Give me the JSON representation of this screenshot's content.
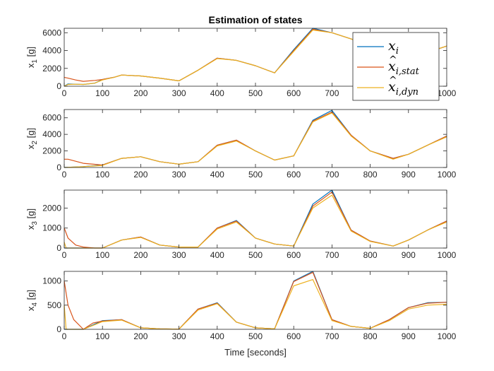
{
  "figure": {
    "title": "Estimation of states",
    "xlabel": "Time [seconds]"
  },
  "chart_data": [
    {
      "type": "line",
      "ylabel_main": "x",
      "ylabel_sub": "1",
      "ylabel_unit": " [g]",
      "xlim": [
        0,
        1000
      ],
      "ylim": [
        0,
        6500
      ],
      "xticks": [
        0,
        100,
        200,
        300,
        400,
        500,
        600,
        700,
        800,
        900,
        1000
      ],
      "yticks": [
        0,
        2000,
        4000,
        6000
      ],
      "grid": false,
      "series": [
        {
          "name": "x_i",
          "color": "#0072BD",
          "x": [
            0,
            10,
            30,
            50,
            80,
            100,
            130,
            150,
            200,
            250,
            300,
            350,
            400,
            450,
            500,
            550,
            600,
            650,
            700,
            750,
            800,
            850,
            900,
            950,
            1000
          ],
          "y": [
            0,
            250,
            220,
            200,
            350,
            750,
            1000,
            1250,
            1150,
            900,
            600,
            1800,
            3150,
            2900,
            2300,
            1500,
            4100,
            6500,
            6000,
            5300,
            4500,
            3800,
            3500,
            3800,
            4500
          ]
        },
        {
          "name": "x_hat_stat",
          "color": "#D95319",
          "x": [
            0,
            10,
            30,
            50,
            80,
            100,
            130,
            150,
            200,
            250,
            300,
            350,
            400,
            450,
            500,
            550,
            600,
            650,
            700,
            750,
            800,
            850,
            900,
            950,
            1000
          ],
          "y": [
            1000,
            900,
            700,
            550,
            650,
            750,
            1000,
            1250,
            1150,
            900,
            600,
            1800,
            3150,
            2900,
            2300,
            1500,
            4000,
            6400,
            6000,
            5300,
            4500,
            3800,
            3500,
            3800,
            4500
          ]
        },
        {
          "name": "x_hat_dyn",
          "color": "#EDB120",
          "x": [
            0,
            10,
            30,
            50,
            80,
            100,
            130,
            150,
            200,
            250,
            300,
            350,
            400,
            450,
            500,
            550,
            600,
            650,
            700,
            750,
            800,
            850,
            900,
            950,
            1000
          ],
          "y": [
            0,
            200,
            220,
            200,
            350,
            700,
            1000,
            1250,
            1150,
            900,
            600,
            1800,
            3100,
            2900,
            2300,
            1500,
            3900,
            6300,
            6000,
            5300,
            4500,
            3800,
            3500,
            3800,
            4500
          ]
        }
      ]
    },
    {
      "type": "line",
      "ylabel_main": "x",
      "ylabel_sub": "2",
      "ylabel_unit": " [g]",
      "xlim": [
        0,
        1000
      ],
      "ylim": [
        0,
        7000
      ],
      "xticks": [
        0,
        100,
        200,
        300,
        400,
        500,
        600,
        700,
        800,
        900,
        1000
      ],
      "yticks": [
        0,
        2000,
        4000,
        6000
      ],
      "grid": false,
      "series": [
        {
          "name": "x_i",
          "color": "#0072BD",
          "x": [
            0,
            50,
            100,
            150,
            200,
            250,
            300,
            350,
            400,
            450,
            500,
            550,
            600,
            650,
            700,
            750,
            800,
            860,
            900,
            950,
            1000
          ],
          "y": [
            0,
            100,
            300,
            1100,
            1300,
            700,
            400,
            700,
            2700,
            3300,
            2000,
            900,
            1400,
            5700,
            6900,
            3900,
            2000,
            1100,
            1600,
            2700,
            3800
          ]
        },
        {
          "name": "x_hat_stat",
          "color": "#D95319",
          "x": [
            0,
            10,
            50,
            100,
            150,
            200,
            250,
            300,
            350,
            400,
            450,
            500,
            550,
            600,
            650,
            700,
            750,
            800,
            860,
            900,
            950,
            1000
          ],
          "y": [
            1000,
            1000,
            500,
            300,
            1100,
            1300,
            700,
            400,
            700,
            2700,
            3300,
            2000,
            900,
            1400,
            5600,
            6700,
            3900,
            2000,
            1100,
            1600,
            2700,
            3800
          ]
        },
        {
          "name": "x_hat_dyn",
          "color": "#EDB120",
          "x": [
            0,
            50,
            100,
            150,
            200,
            250,
            300,
            350,
            400,
            450,
            500,
            550,
            600,
            650,
            700,
            750,
            800,
            860,
            900,
            950,
            1000
          ],
          "y": [
            0,
            100,
            250,
            1100,
            1300,
            700,
            400,
            700,
            2600,
            3200,
            2000,
            900,
            1400,
            5500,
            6600,
            3800,
            2000,
            1000,
            1600,
            2700,
            3700
          ]
        }
      ]
    },
    {
      "type": "line",
      "ylabel_main": "x",
      "ylabel_sub": "3",
      "ylabel_unit": " [g]",
      "xlim": [
        0,
        1000
      ],
      "ylim": [
        0,
        2900
      ],
      "xticks": [
        0,
        100,
        200,
        300,
        400,
        500,
        600,
        700,
        800,
        900,
        1000
      ],
      "yticks": [
        0,
        1000,
        2000
      ],
      "grid": false,
      "series": [
        {
          "name": "x_i",
          "color": "#0072BD",
          "x": [
            0,
            50,
            100,
            150,
            200,
            250,
            300,
            350,
            400,
            450,
            500,
            550,
            600,
            650,
            700,
            750,
            800,
            860,
            900,
            950,
            1000
          ],
          "y": [
            0,
            0,
            0,
            400,
            550,
            150,
            50,
            50,
            1000,
            1380,
            500,
            200,
            100,
            2200,
            2900,
            900,
            350,
            100,
            400,
            900,
            1350
          ]
        },
        {
          "name": "x_hat_stat",
          "color": "#D95319",
          "x": [
            0,
            10,
            30,
            50,
            80,
            100,
            150,
            200,
            250,
            300,
            350,
            400,
            450,
            500,
            550,
            600,
            650,
            700,
            750,
            800,
            860,
            900,
            950,
            1000
          ],
          "y": [
            1000,
            500,
            150,
            50,
            0,
            0,
            400,
            550,
            150,
            50,
            50,
            1000,
            1350,
            500,
            200,
            100,
            2100,
            2800,
            900,
            350,
            100,
            400,
            900,
            1350
          ]
        },
        {
          "name": "x_hat_dyn",
          "color": "#EDB120",
          "x": [
            0,
            5,
            50,
            100,
            150,
            200,
            250,
            300,
            350,
            400,
            450,
            500,
            550,
            600,
            650,
            700,
            750,
            800,
            860,
            900,
            950,
            1000
          ],
          "y": [
            300,
            0,
            0,
            0,
            400,
            530,
            150,
            50,
            50,
            950,
            1300,
            500,
            200,
            100,
            2000,
            2650,
            850,
            330,
            100,
            400,
            900,
            1300
          ]
        }
      ]
    },
    {
      "type": "line",
      "ylabel_main": "x",
      "ylabel_sub": "4",
      "ylabel_unit": " [g]",
      "xlim": [
        0,
        1000
      ],
      "ylim": [
        0,
        1200
      ],
      "xticks": [
        0,
        100,
        200,
        300,
        400,
        500,
        600,
        700,
        800,
        900,
        1000
      ],
      "yticks": [
        0,
        500,
        1000
      ],
      "grid": false,
      "series": [
        {
          "name": "x_i",
          "color": "#0072BD",
          "x": [
            0,
            50,
            100,
            150,
            200,
            250,
            300,
            350,
            400,
            450,
            500,
            550,
            600,
            650,
            700,
            750,
            800,
            850,
            900,
            950,
            1000
          ],
          "y": [
            0,
            0,
            180,
            200,
            30,
            10,
            5,
            420,
            550,
            150,
            30,
            10,
            1000,
            1200,
            200,
            60,
            20,
            200,
            450,
            550,
            560
          ]
        },
        {
          "name": "x_hat_stat",
          "color": "#D95319",
          "x": [
            0,
            10,
            25,
            50,
            75,
            100,
            150,
            200,
            250,
            300,
            350,
            400,
            450,
            500,
            550,
            600,
            650,
            700,
            750,
            800,
            850,
            900,
            950,
            1000
          ],
          "y": [
            1000,
            500,
            200,
            0,
            130,
            170,
            200,
            30,
            10,
            5,
            420,
            540,
            150,
            30,
            10,
            990,
            1180,
            200,
            60,
            20,
            200,
            450,
            540,
            560
          ]
        },
        {
          "name": "x_hat_dyn",
          "color": "#EDB120",
          "x": [
            0,
            5,
            50,
            100,
            150,
            200,
            250,
            300,
            350,
            400,
            450,
            500,
            550,
            600,
            650,
            700,
            750,
            800,
            850,
            900,
            950,
            1000
          ],
          "y": [
            500,
            0,
            0,
            160,
            190,
            30,
            10,
            5,
            400,
            530,
            150,
            30,
            10,
            900,
            1030,
            180,
            60,
            20,
            180,
            420,
            500,
            520
          ]
        }
      ]
    }
  ],
  "legend": {
    "placement": "top-right",
    "entries": [
      {
        "base": "x",
        "sub": "i",
        "hat": false,
        "color": "#0072BD"
      },
      {
        "base": "x",
        "sub": "i,stat",
        "hat": true,
        "color": "#D95319"
      },
      {
        "base": "x",
        "sub": "i,dyn",
        "hat": true,
        "color": "#EDB120"
      }
    ]
  }
}
